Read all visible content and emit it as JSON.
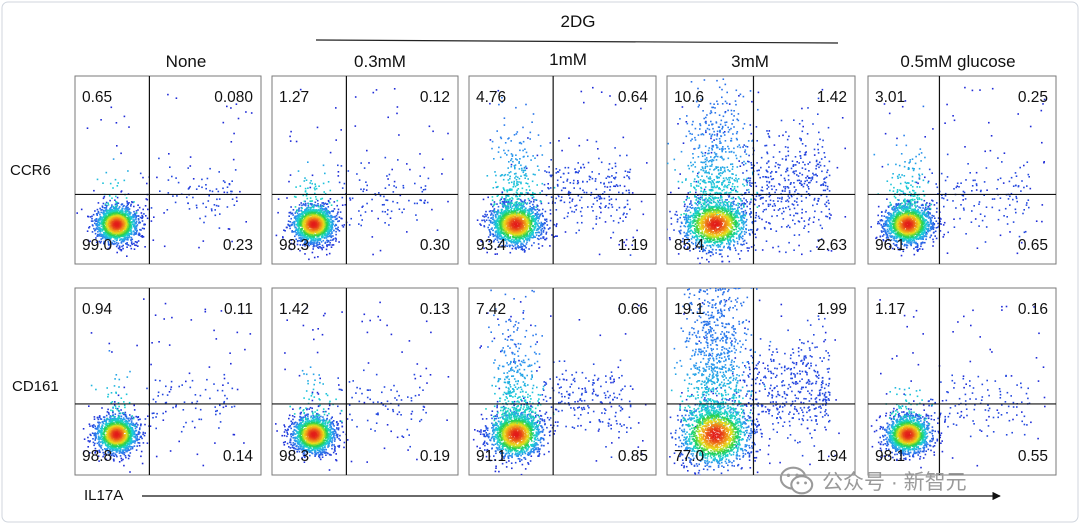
{
  "figure": {
    "group_label": "2DG",
    "column_headers": [
      "None",
      "0.3mM",
      "1mM",
      "3mM",
      "0.5mM glucose"
    ],
    "row_labels": [
      "CCR6",
      "CD161"
    ],
    "x_axis_label": "IL17A",
    "watermark": "公众号 · 新智元"
  },
  "chart_data": {
    "type": "scatter",
    "subtype": "flow-cytometry-quadrant-grid",
    "x_label": "IL17A",
    "y_labels": [
      "CCR6",
      "CD161"
    ],
    "columns": [
      "None",
      "0.3mM",
      "1mM",
      "3mM",
      "0.5mM glucose"
    ],
    "column_group": {
      "label": "2DG",
      "columns": [
        "0.3mM",
        "1mM",
        "3mM"
      ]
    },
    "panels": [
      {
        "row": "CCR6",
        "column": "None",
        "quadrants": {
          "top_left": "0.65",
          "top_right": "0.080",
          "bottom_left": "99.0",
          "bottom_right": "0.23"
        }
      },
      {
        "row": "CCR6",
        "column": "0.3mM",
        "quadrants": {
          "top_left": "1.27",
          "top_right": "0.12",
          "bottom_left": "98.3",
          "bottom_right": "0.30"
        }
      },
      {
        "row": "CCR6",
        "column": "1mM",
        "quadrants": {
          "top_left": "4.76",
          "top_right": "0.64",
          "bottom_left": "93.4",
          "bottom_right": "1.19"
        }
      },
      {
        "row": "CCR6",
        "column": "3mM",
        "quadrants": {
          "top_left": "10.6",
          "top_right": "1.42",
          "bottom_left": "85.4",
          "bottom_right": "2.63"
        }
      },
      {
        "row": "CCR6",
        "column": "0.5mM glucose",
        "quadrants": {
          "top_left": "3.01",
          "top_right": "0.25",
          "bottom_left": "96.1",
          "bottom_right": "0.65"
        }
      },
      {
        "row": "CD161",
        "column": "None",
        "quadrants": {
          "top_left": "0.94",
          "top_right": "0.11",
          "bottom_left": "98.8",
          "bottom_right": "0.14"
        }
      },
      {
        "row": "CD161",
        "column": "0.3mM",
        "quadrants": {
          "top_left": "1.42",
          "top_right": "0.13",
          "bottom_left": "98.3",
          "bottom_right": "0.19"
        }
      },
      {
        "row": "CD161",
        "column": "1mM",
        "quadrants": {
          "top_left": "7.42",
          "top_right": "0.66",
          "bottom_left": "91.1",
          "bottom_right": "0.85"
        }
      },
      {
        "row": "CD161",
        "column": "3mM",
        "quadrants": {
          "top_left": "19.1",
          "top_right": "1.99",
          "bottom_left": "77.0",
          "bottom_right": "1.94"
        }
      },
      {
        "row": "CD161",
        "column": "0.5mM glucose",
        "quadrants": {
          "top_left": "1.17",
          "top_right": "0.16",
          "bottom_left": "98.1",
          "bottom_right": "0.55"
        }
      }
    ],
    "colormap": [
      "#1f2bd8",
      "#2d8cf0",
      "#19d3d3",
      "#27d14a",
      "#e9e21b",
      "#f08a1a",
      "#e21a1a"
    ]
  }
}
